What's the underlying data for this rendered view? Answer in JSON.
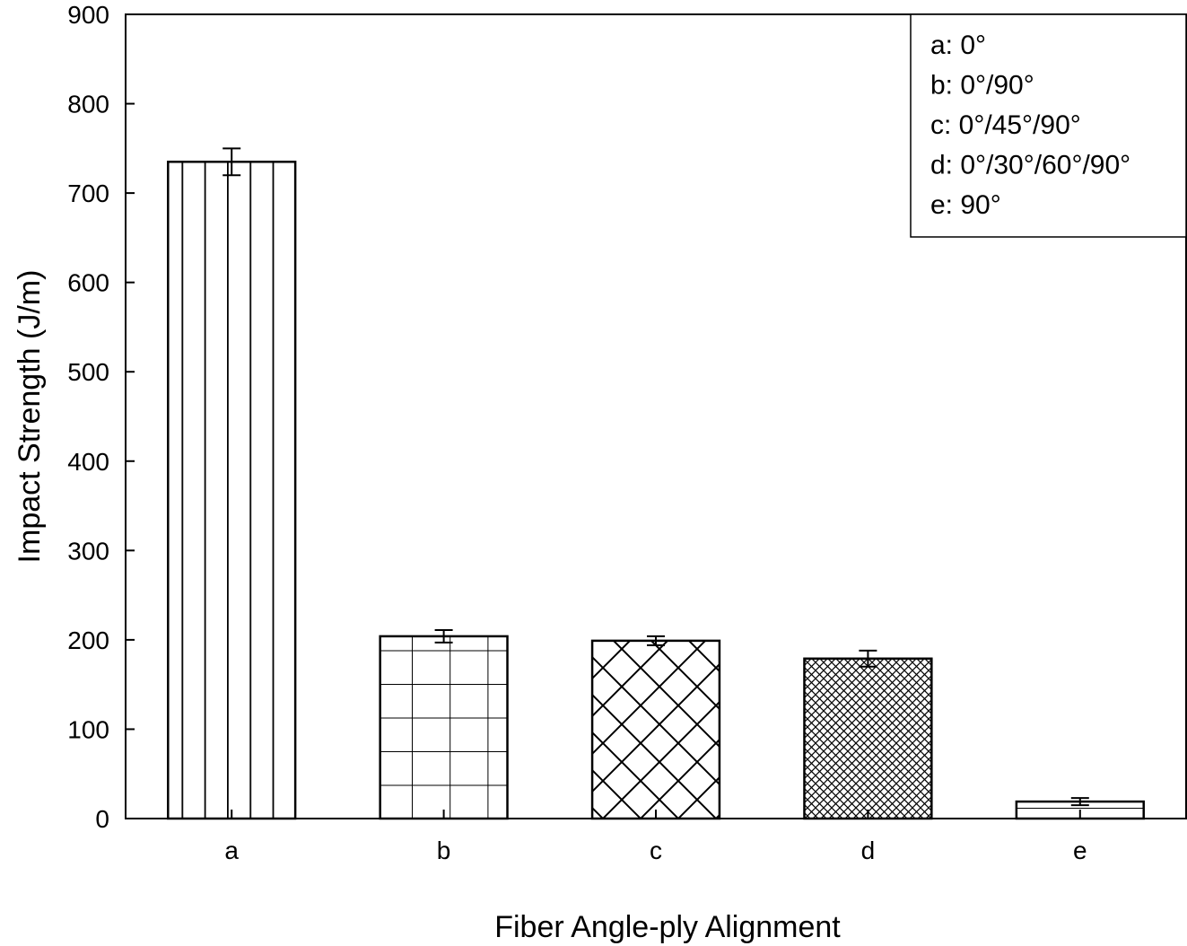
{
  "chart_data": {
    "type": "bar",
    "title": "",
    "xlabel": "Fiber Angle-ply Alignment",
    "ylabel": "Impact Strength (J/m)",
    "categories": [
      "a",
      "b",
      "c",
      "d",
      "e"
    ],
    "values": [
      735,
      204,
      199,
      179,
      19
    ],
    "errors": [
      15,
      7,
      5,
      9,
      4
    ],
    "patterns": [
      "vertical-lines",
      "grid",
      "crosshatch-diagonal",
      "dense-crosshatch",
      "horizontal-lines"
    ],
    "ylim": [
      0,
      900
    ],
    "yticks": [
      0,
      100,
      200,
      300,
      400,
      500,
      600,
      700,
      800,
      900
    ],
    "grid": false,
    "legend": {
      "placement": "top-right",
      "entries": [
        "a: 0°",
        "b: 0°/90°",
        "c: 0°/45°/90°",
        "d: 0°/30°/60°/90°",
        "e: 90°"
      ]
    }
  }
}
